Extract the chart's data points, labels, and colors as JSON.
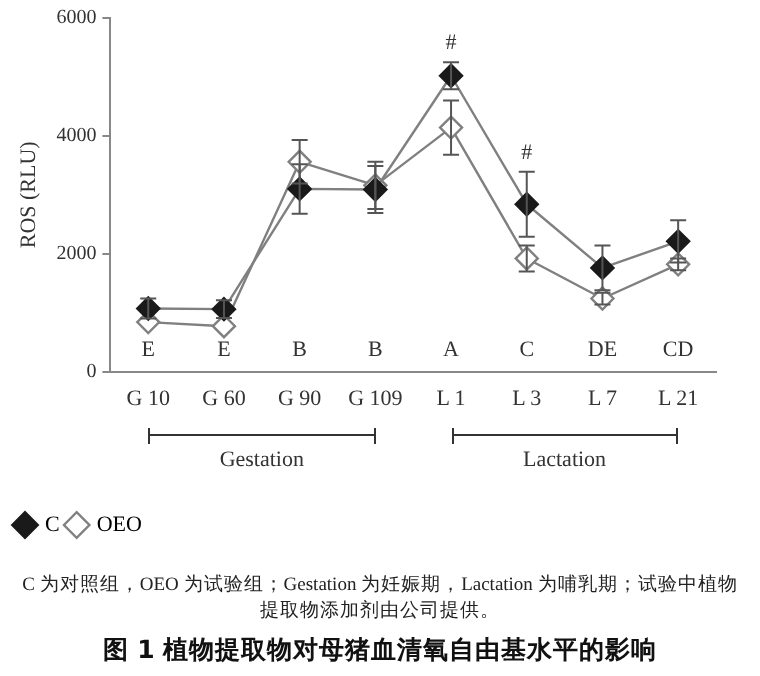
{
  "chart_data": {
    "type": "line",
    "title": "图 1  植物提取物对母猪血清氧自由基水平的影响",
    "ylabel": "ROS (RLU)",
    "categories": [
      "G 10",
      "G 60",
      "G 90",
      "G 109",
      "L 1",
      "L 3",
      "L 7",
      "L 21"
    ],
    "series": [
      {
        "name": "C",
        "color": "#1a1a1a",
        "marker": "diamond",
        "values": [
          1070,
          1060,
          3100,
          3090,
          5020,
          2840,
          1760,
          2210
        ],
        "errors": [
          170,
          150,
          420,
          400,
          230,
          550,
          380,
          360
        ]
      },
      {
        "name": "OEO",
        "color": "#808080",
        "marker": "diamond",
        "values": [
          840,
          770,
          3560,
          3160,
          4140,
          1920,
          1240,
          1820
        ],
        "errors": [
          null,
          null,
          370,
          400,
          460,
          220,
          100,
          100
        ]
      }
    ],
    "ylim": [
      0,
      6000
    ],
    "yticks": [
      0,
      2000,
      4000,
      6000
    ],
    "grid": false,
    "legend": "bottom left",
    "line_style": "solid",
    "annotations": [
      "E",
      "E",
      "B",
      "B",
      "A",
      "C",
      "DE",
      "CD",
      {
        "text": "#",
        "x": "L 1",
        "y": 5020
      },
      {
        "text": "#",
        "x": "L 3",
        "y": 2840
      },
      "Gestation",
      "Lactation",
      "C 为对照组，OEO 为试验组；Gestation 为妊娠期，Lactation 为哺乳期；试验中植物提取物添加剂由公司提供。"
    ]
  }
}
